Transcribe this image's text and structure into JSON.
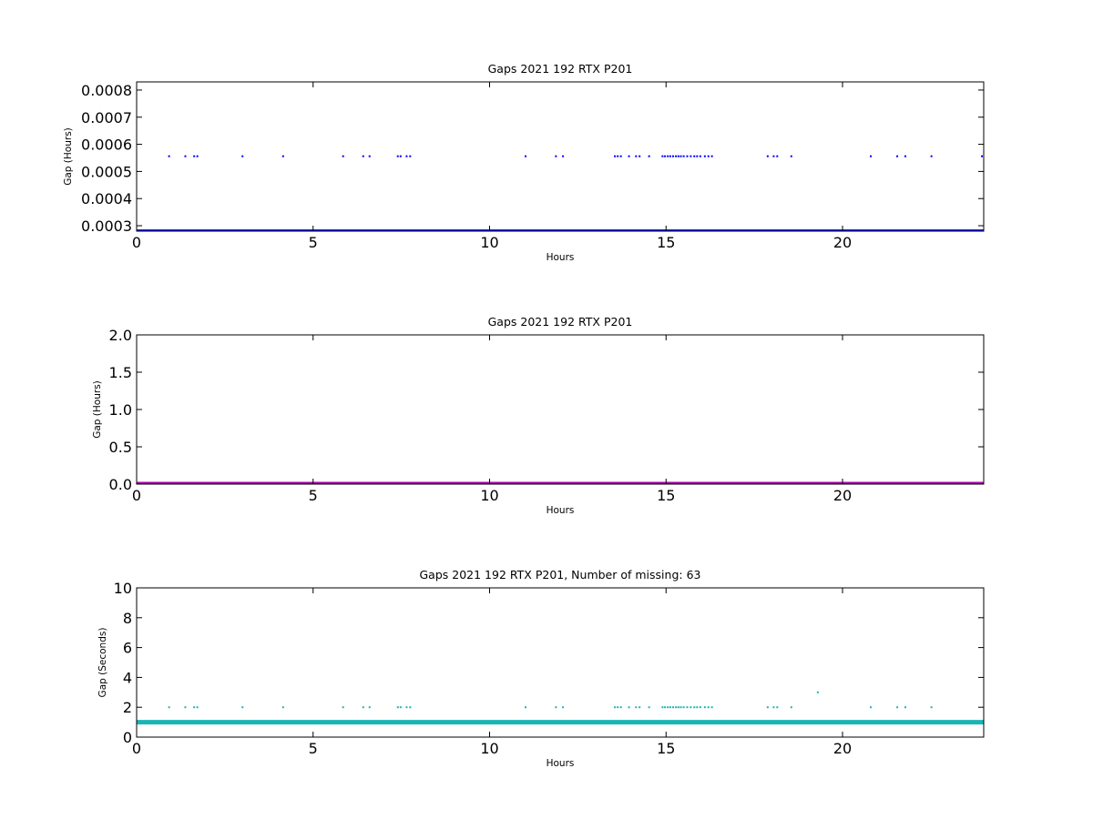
{
  "chart_data": [
    {
      "type": "scatter",
      "title": "Gaps 2021 192 RTX  P201",
      "xlabel": "Hours",
      "ylabel": "Gap (Hours)",
      "xlim": [
        0,
        24
      ],
      "ylim": [
        0.00028,
        0.00083
      ],
      "xticks": [
        "0",
        "5",
        "10",
        "15",
        "20"
      ],
      "xtick_values": [
        0,
        5,
        10,
        15,
        20
      ],
      "yticks": [
        "0.0003",
        "0.0004",
        "0.0005",
        "0.0006",
        "0.0007",
        "0.0008"
      ],
      "ytick_values": [
        0.0003,
        0.0004,
        0.0005,
        0.0006,
        0.0007,
        0.0008
      ],
      "grid": false,
      "color": "#0000ff",
      "series": [
        {
          "points": [
            [
              0.92,
              0.000556
            ],
            [
              1.38,
              0.000556
            ],
            [
              1.63,
              0.000556
            ],
            [
              1.72,
              0.000556
            ],
            [
              3.0,
              0.000556
            ],
            [
              4.15,
              0.000556
            ],
            [
              5.85,
              0.000556
            ],
            [
              6.42,
              0.000556
            ],
            [
              6.6,
              0.000556
            ],
            [
              7.4,
              0.000556
            ],
            [
              7.48,
              0.000556
            ],
            [
              7.65,
              0.000556
            ],
            [
              7.75,
              0.000556
            ],
            [
              11.02,
              0.000556
            ],
            [
              11.88,
              0.000556
            ],
            [
              12.08,
              0.000556
            ],
            [
              13.55,
              0.000556
            ],
            [
              13.63,
              0.000556
            ],
            [
              13.72,
              0.000556
            ],
            [
              13.95,
              0.000556
            ],
            [
              14.15,
              0.000556
            ],
            [
              14.25,
              0.000556
            ],
            [
              14.52,
              0.000556
            ],
            [
              14.9,
              0.000556
            ],
            [
              14.97,
              0.000556
            ],
            [
              15.05,
              0.000556
            ],
            [
              15.12,
              0.000556
            ],
            [
              15.2,
              0.000556
            ],
            [
              15.28,
              0.000556
            ],
            [
              15.35,
              0.000556
            ],
            [
              15.42,
              0.000556
            ],
            [
              15.5,
              0.000556
            ],
            [
              15.6,
              0.000556
            ],
            [
              15.7,
              0.000556
            ],
            [
              15.8,
              0.000556
            ],
            [
              15.88,
              0.000556
            ],
            [
              15.97,
              0.000556
            ],
            [
              16.1,
              0.000556
            ],
            [
              16.2,
              0.000556
            ],
            [
              16.3,
              0.000556
            ],
            [
              17.88,
              0.000556
            ],
            [
              18.05,
              0.000556
            ],
            [
              18.15,
              0.000556
            ],
            [
              18.55,
              0.000556
            ],
            [
              20.8,
              0.000556
            ],
            [
              21.55,
              0.000556
            ],
            [
              21.78,
              0.000556
            ],
            [
              22.52,
              0.000556
            ],
            [
              23.95,
              0.000556
            ]
          ],
          "baseline": 0.000278
        }
      ]
    },
    {
      "type": "scatter",
      "title": "Gaps 2021 192 RTX  P201",
      "xlabel": "Hours",
      "ylabel": "Gap (Hours)",
      "xlim": [
        0,
        24
      ],
      "ylim": [
        0,
        2.0
      ],
      "xticks": [
        "0",
        "5",
        "10",
        "15",
        "20"
      ],
      "xtick_values": [
        0,
        5,
        10,
        15,
        20
      ],
      "yticks": [
        "0.0",
        "0.5",
        "1.0",
        "1.5",
        "2.0"
      ],
      "ytick_values": [
        0,
        0.5,
        1.0,
        1.5,
        2.0
      ],
      "grid": false,
      "color": "#aa00aa",
      "series": [
        {
          "points": [],
          "baseline": 0.0
        }
      ]
    },
    {
      "type": "scatter",
      "title": "Gaps 2021 192 RTX  P201, Number of missing: 63",
      "xlabel": "Hours",
      "ylabel": "Gap (Seconds)",
      "xlim": [
        0,
        24
      ],
      "ylim": [
        0,
        10
      ],
      "xticks": [
        "0",
        "5",
        "10",
        "15",
        "20"
      ],
      "xtick_values": [
        0,
        5,
        10,
        15,
        20
      ],
      "yticks": [
        "0",
        "2",
        "4",
        "6",
        "8",
        "10"
      ],
      "ytick_values": [
        0,
        2,
        4,
        6,
        8,
        10
      ],
      "grid": false,
      "color": "#1ab5b5",
      "series": [
        {
          "points": [
            [
              0.92,
              2
            ],
            [
              1.38,
              2
            ],
            [
              1.63,
              2
            ],
            [
              1.72,
              2
            ],
            [
              3.0,
              2
            ],
            [
              4.15,
              2
            ],
            [
              5.85,
              2
            ],
            [
              6.42,
              2
            ],
            [
              6.6,
              2
            ],
            [
              7.4,
              2
            ],
            [
              7.48,
              2
            ],
            [
              7.65,
              2
            ],
            [
              7.75,
              2
            ],
            [
              11.02,
              2
            ],
            [
              11.88,
              2
            ],
            [
              12.08,
              2
            ],
            [
              13.55,
              2
            ],
            [
              13.63,
              2
            ],
            [
              13.72,
              2
            ],
            [
              13.95,
              2
            ],
            [
              14.15,
              2
            ],
            [
              14.25,
              2
            ],
            [
              14.52,
              2
            ],
            [
              14.9,
              2
            ],
            [
              14.97,
              2
            ],
            [
              15.05,
              2
            ],
            [
              15.12,
              2
            ],
            [
              15.2,
              2
            ],
            [
              15.28,
              2
            ],
            [
              15.35,
              2
            ],
            [
              15.42,
              2
            ],
            [
              15.5,
              2
            ],
            [
              15.6,
              2
            ],
            [
              15.7,
              2
            ],
            [
              15.8,
              2
            ],
            [
              15.88,
              2
            ],
            [
              15.97,
              2
            ],
            [
              16.1,
              2
            ],
            [
              16.2,
              2
            ],
            [
              16.3,
              2
            ],
            [
              17.88,
              2
            ],
            [
              18.05,
              2
            ],
            [
              18.15,
              2
            ],
            [
              18.55,
              2
            ],
            [
              19.3,
              3
            ],
            [
              20.8,
              2
            ],
            [
              21.55,
              2
            ],
            [
              21.78,
              2
            ],
            [
              22.52,
              2
            ]
          ],
          "baseline": 1
        }
      ]
    }
  ]
}
